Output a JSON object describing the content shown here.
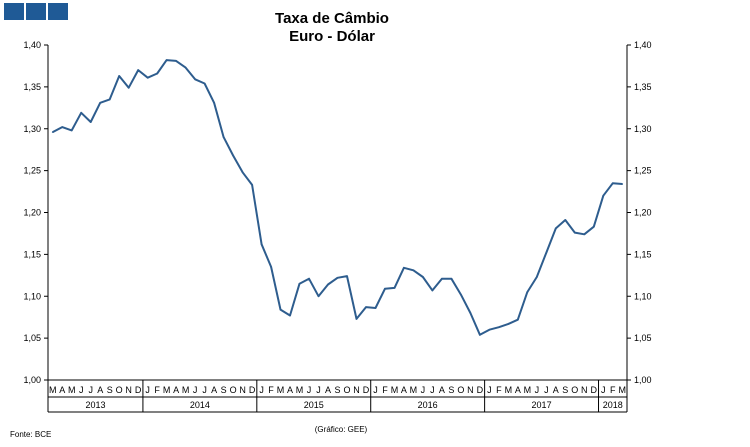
{
  "header": {
    "logo_icon": "institution-logo-icon"
  },
  "footer": {
    "source": "Fonte: BCE",
    "credit": "(Gráfico: GEE)"
  },
  "chart_data": {
    "type": "line",
    "title": "Taxa de Câmbio",
    "subtitle": "Euro - Dólar",
    "xlabel": "",
    "ylabel": "",
    "ylim": [
      1.0,
      1.4
    ],
    "yticks": [
      "1,00",
      "1,05",
      "1,10",
      "1,15",
      "1,20",
      "1,25",
      "1,30",
      "1,35",
      "1,40"
    ],
    "grid": false,
    "line_color": "#2e5d8e",
    "categories": [
      "M",
      "A",
      "M",
      "J",
      "J",
      "A",
      "S",
      "O",
      "N",
      "D",
      "J",
      "F",
      "M",
      "A",
      "M",
      "J",
      "J",
      "A",
      "S",
      "O",
      "N",
      "D",
      "J",
      "F",
      "M",
      "A",
      "M",
      "J",
      "J",
      "A",
      "S",
      "O",
      "N",
      "D",
      "J",
      "F",
      "M",
      "A",
      "M",
      "J",
      "J",
      "A",
      "S",
      "O",
      "N",
      "D",
      "J",
      "F",
      "M",
      "A",
      "M",
      "J",
      "J",
      "A",
      "S",
      "O",
      "N",
      "D",
      "J",
      "F",
      "M"
    ],
    "years": [
      {
        "label": "2013",
        "start": 0,
        "count": 10
      },
      {
        "label": "2014",
        "start": 10,
        "count": 12
      },
      {
        "label": "2015",
        "start": 22,
        "count": 12
      },
      {
        "label": "2016",
        "start": 34,
        "count": 12
      },
      {
        "label": "2017",
        "start": 46,
        "count": 12
      },
      {
        "label": "2018",
        "start": 58,
        "count": 3
      }
    ],
    "series": [
      {
        "values": [
          1.296,
          1.302,
          1.298,
          1.319,
          1.308,
          1.331,
          1.335,
          1.363,
          1.349,
          1.37,
          1.361,
          1.366,
          1.382,
          1.381,
          1.373,
          1.359,
          1.354,
          1.331,
          1.29,
          1.268,
          1.248,
          1.233,
          1.162,
          1.135,
          1.084,
          1.077,
          1.115,
          1.121,
          1.1,
          1.114,
          1.122,
          1.124,
          1.073,
          1.087,
          1.086,
          1.109,
          1.11,
          1.134,
          1.131,
          1.123,
          1.107,
          1.121,
          1.121,
          1.102,
          1.08,
          1.054,
          1.06,
          1.063,
          1.067,
          1.072,
          1.105,
          1.123,
          1.152,
          1.181,
          1.191,
          1.176,
          1.174,
          1.183,
          1.22,
          1.235,
          1.234
        ]
      }
    ]
  }
}
